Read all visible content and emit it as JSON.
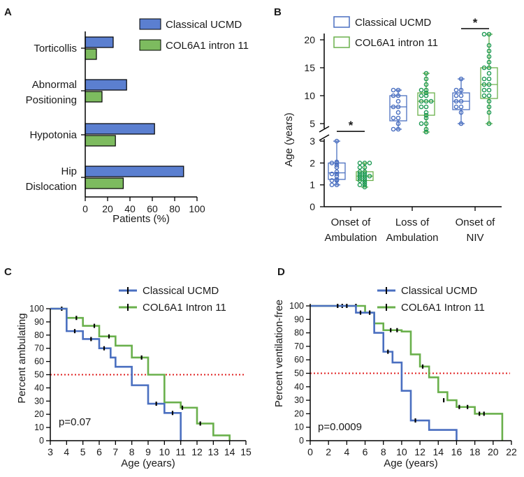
{
  "colors": {
    "blue": "#4a6fc0",
    "blue_fill": "#5b7fd0",
    "green": "#6ab04c",
    "green_fill": "#7dbb5f",
    "green_dark": "#1e9a55",
    "red": "#e02020"
  },
  "chart_data": [
    {
      "panel": "A",
      "type": "bar",
      "orientation": "horizontal",
      "categories": [
        "Torticollis",
        "Abnormal Positioning",
        "Hypotonia",
        "Hip Dislocation"
      ],
      "category_lines": [
        [
          "Torticollis"
        ],
        [
          "Abnormal",
          "Positioning"
        ],
        [
          "Hypotonia"
        ],
        [
          "Hip",
          "Dislocation"
        ]
      ],
      "series": [
        {
          "name": "Classical UCMD",
          "values": [
            25,
            37,
            62,
            88
          ]
        },
        {
          "name": "COL6A1 intron 11",
          "values": [
            10,
            15,
            27,
            34
          ]
        }
      ],
      "xlabel": "Patients (%)",
      "xticks": [
        "0",
        "20",
        "40",
        "60",
        "80",
        "100"
      ],
      "xlim": [
        0,
        100
      ]
    },
    {
      "panel": "B",
      "type": "box",
      "groups": [
        [
          "Onset of",
          "Ambulation"
        ],
        [
          "Loss of",
          "Ambulation"
        ],
        [
          "Onset of",
          "NIV"
        ]
      ],
      "series": [
        "Classical UCMD",
        "COL6A1 intron 11"
      ],
      "ylabel": "Age (years)",
      "yticks_lower": [
        "0",
        "1",
        "2",
        "3"
      ],
      "yticks_upper": [
        "5",
        "10",
        "15",
        "20"
      ],
      "significance": "*",
      "significance_groups": [
        0,
        2
      ],
      "boxes": [
        {
          "group": 0,
          "series": 0,
          "min": 1.0,
          "q1": 1.25,
          "median": 1.55,
          "q3": 2.0,
          "max": 3.0,
          "points": [
            1.0,
            1.0,
            1.2,
            1.2,
            1.25,
            1.4,
            1.5,
            1.5,
            1.6,
            1.8,
            1.9,
            2.0,
            2.0,
            2.05,
            3.0
          ]
        },
        {
          "group": 0,
          "series": 1,
          "min": 0.9,
          "q1": 1.2,
          "median": 1.4,
          "q3": 1.6,
          "max": 2.0,
          "points": [
            0.9,
            1.0,
            1.0,
            1.1,
            1.2,
            1.2,
            1.3,
            1.3,
            1.4,
            1.4,
            1.4,
            1.5,
            1.5,
            1.6,
            1.6,
            1.8,
            1.8,
            2.0,
            2.0,
            2.0
          ]
        },
        {
          "group": 1,
          "series": 0,
          "min": 4.0,
          "q1": 5.5,
          "median": 8.0,
          "q3": 10.0,
          "max": 11.0,
          "points": [
            4.0,
            4.0,
            5.0,
            6.0,
            6.0,
            7.0,
            8.0,
            8.0,
            9.0,
            10.0,
            10.0,
            11.0,
            11.0
          ]
        },
        {
          "group": 1,
          "series": 1,
          "min": 3.5,
          "q1": 6.5,
          "median": 9.0,
          "q3": 10.5,
          "max": 14.0,
          "points": [
            3.5,
            4.0,
            5.0,
            5.0,
            6.0,
            6.5,
            7.0,
            8.0,
            8.0,
            9.0,
            9.0,
            9.0,
            10.0,
            10.0,
            10.5,
            11.0,
            11.0,
            12.0,
            13.0,
            14.0
          ]
        },
        {
          "group": 2,
          "series": 0,
          "min": 5.0,
          "q1": 7.5,
          "median": 9.0,
          "q3": 10.5,
          "max": 13.0,
          "points": [
            5.0,
            7.0,
            8.0,
            8.0,
            9.0,
            9.0,
            10.0,
            10.0,
            11.0,
            11.0,
            13.0
          ]
        },
        {
          "group": 2,
          "series": 1,
          "min": 5.0,
          "q1": 9.5,
          "median": 12.0,
          "q3": 15.0,
          "max": 21.0,
          "points": [
            5.0,
            7.0,
            8.0,
            9.0,
            10.0,
            10.0,
            11.0,
            11.0,
            12.0,
            12.0,
            13.0,
            13.0,
            14.0,
            15.0,
            15.0,
            16.0,
            17.0,
            18.0,
            19.0,
            21.0,
            21.0
          ]
        }
      ]
    },
    {
      "panel": "C",
      "type": "line",
      "subtype": "step (Kaplan-Meier)",
      "ylabel": "Percent ambulating",
      "xlabel": "Age (years)",
      "xlim": [
        3,
        15
      ],
      "ylim": [
        0,
        100
      ],
      "xticks": [
        "3",
        "4",
        "5",
        "6",
        "7",
        "8",
        "9",
        "10",
        "11",
        "12",
        "13",
        "14",
        "15"
      ],
      "yticks": [
        "0",
        "10",
        "20",
        "30",
        "40",
        "50",
        "60",
        "70",
        "80",
        "90",
        "100"
      ],
      "median_line": 50,
      "pvalue": "p=0.07",
      "series": [
        {
          "name": "Classical UCMD",
          "steps": [
            [
              3,
              100
            ],
            [
              4,
              83
            ],
            [
              5,
              77
            ],
            [
              6,
              70
            ],
            [
              6.7,
              63
            ],
            [
              7,
              56
            ],
            [
              8,
              42
            ],
            [
              9,
              28
            ],
            [
              10,
              21
            ],
            [
              11,
              0
            ]
          ],
          "censored": [
            [
              4.5,
              83
            ],
            [
              5.5,
              77
            ],
            [
              6.3,
              70
            ],
            [
              9.5,
              28
            ],
            [
              10.5,
              21
            ]
          ]
        },
        {
          "name": "COL6A1 Intron 11",
          "steps": [
            [
              3,
              100
            ],
            [
              4,
              93
            ],
            [
              5,
              87
            ],
            [
              6,
              79
            ],
            [
              7,
              72
            ],
            [
              8,
              63
            ],
            [
              9,
              50
            ],
            [
              10,
              29
            ],
            [
              11,
              25
            ],
            [
              12,
              13
            ],
            [
              13,
              4
            ],
            [
              14,
              0
            ]
          ],
          "censored": [
            [
              3.7,
              100
            ],
            [
              4.6,
              93
            ],
            [
              5.7,
              87
            ],
            [
              6.6,
              79
            ],
            [
              8.6,
              63
            ],
            [
              11.1,
              25
            ],
            [
              12.2,
              13
            ]
          ]
        }
      ]
    },
    {
      "panel": "D",
      "type": "line",
      "subtype": "step (Kaplan-Meier)",
      "ylabel": "Percent ventilation-free",
      "xlabel": "Age (years)",
      "xlim": [
        0,
        22
      ],
      "ylim": [
        0,
        100
      ],
      "xticks": [
        "0",
        "2",
        "4",
        "6",
        "8",
        "10",
        "12",
        "14",
        "16",
        "18",
        "20",
        "22"
      ],
      "yticks": [
        "0",
        "10",
        "20",
        "30",
        "40",
        "50",
        "60",
        "70",
        "80",
        "90",
        "100"
      ],
      "median_line": 50,
      "pvalue": "p=0.0009",
      "series": [
        {
          "name": "Classical UCMD",
          "steps": [
            [
              0,
              100
            ],
            [
              5,
              95
            ],
            [
              7,
              80
            ],
            [
              8,
              66
            ],
            [
              9,
              58
            ],
            [
              10,
              37
            ],
            [
              11,
              15
            ],
            [
              13,
              8
            ],
            [
              16,
              0
            ]
          ],
          "censored": [
            [
              3,
              100
            ],
            [
              4,
              100
            ],
            [
              5.5,
              95
            ],
            [
              6.5,
              95
            ],
            [
              8.5,
              66
            ],
            [
              11.5,
              15
            ]
          ]
        },
        {
          "name": "COL6A1 Intron 11",
          "steps": [
            [
              0,
              100
            ],
            [
              6,
              95
            ],
            [
              7,
              87
            ],
            [
              8,
              82
            ],
            [
              10,
              81
            ],
            [
              11,
              64
            ],
            [
              12,
              55
            ],
            [
              13,
              47
            ],
            [
              14,
              36
            ],
            [
              15,
              30
            ],
            [
              16,
              25
            ],
            [
              18,
              20
            ],
            [
              21,
              0
            ]
          ],
          "censored": [
            [
              3.5,
              100
            ],
            [
              5,
              100
            ],
            [
              6.5,
              95
            ],
            [
              8.8,
              82
            ],
            [
              9.5,
              82
            ],
            [
              12.3,
              55
            ],
            [
              14.6,
              30
            ],
            [
              16.3,
              25
            ],
            [
              17.2,
              25
            ],
            [
              18.5,
              20
            ],
            [
              19,
              20
            ]
          ]
        }
      ]
    }
  ]
}
